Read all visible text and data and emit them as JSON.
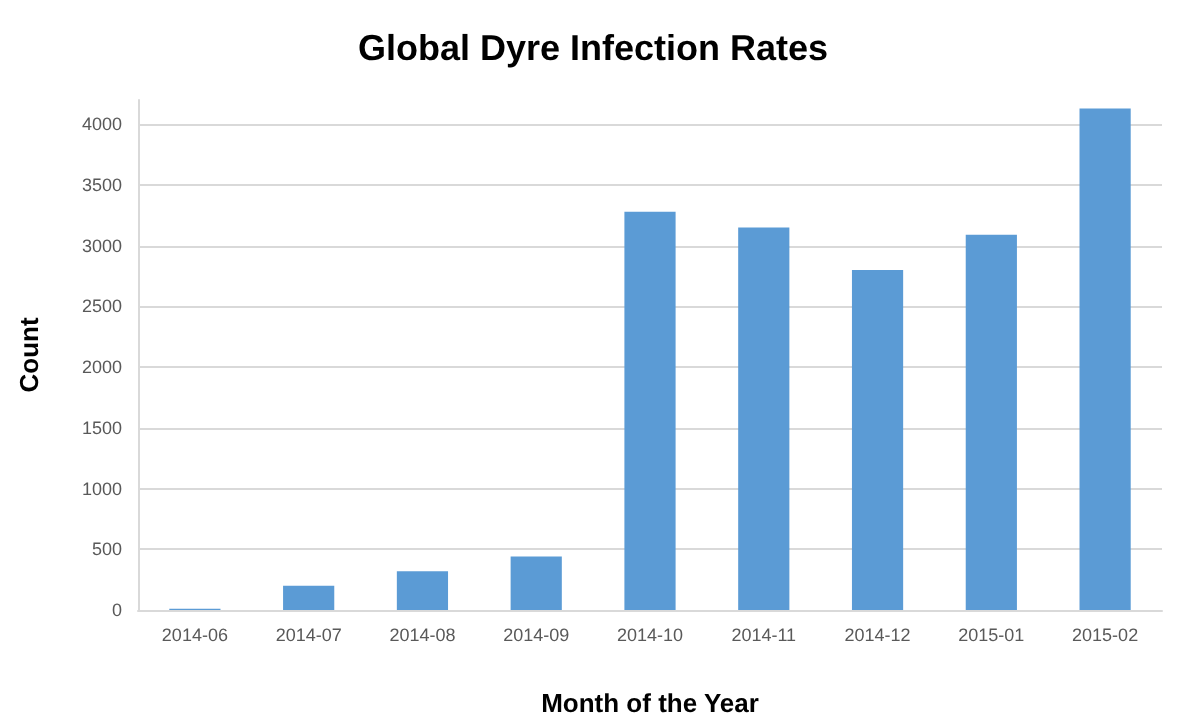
{
  "chart_data": {
    "type": "bar",
    "title": "Global Dyre Infection Rates",
    "xlabel": "Month of the Year",
    "ylabel": "Count",
    "categories": [
      "2014-06",
      "2014-07",
      "2014-08",
      "2014-09",
      "2014-10",
      "2014-11",
      "2014-12",
      "2015-01",
      "2015-02"
    ],
    "values": [
      10,
      200,
      320,
      440,
      3280,
      3150,
      2800,
      3090,
      4130
    ],
    "color": "#5b9bd5",
    "ylim": [
      0,
      4200
    ],
    "yticks": [
      0,
      500,
      1000,
      1500,
      2000,
      2500,
      3000,
      3500,
      4000
    ],
    "grid": "y"
  }
}
